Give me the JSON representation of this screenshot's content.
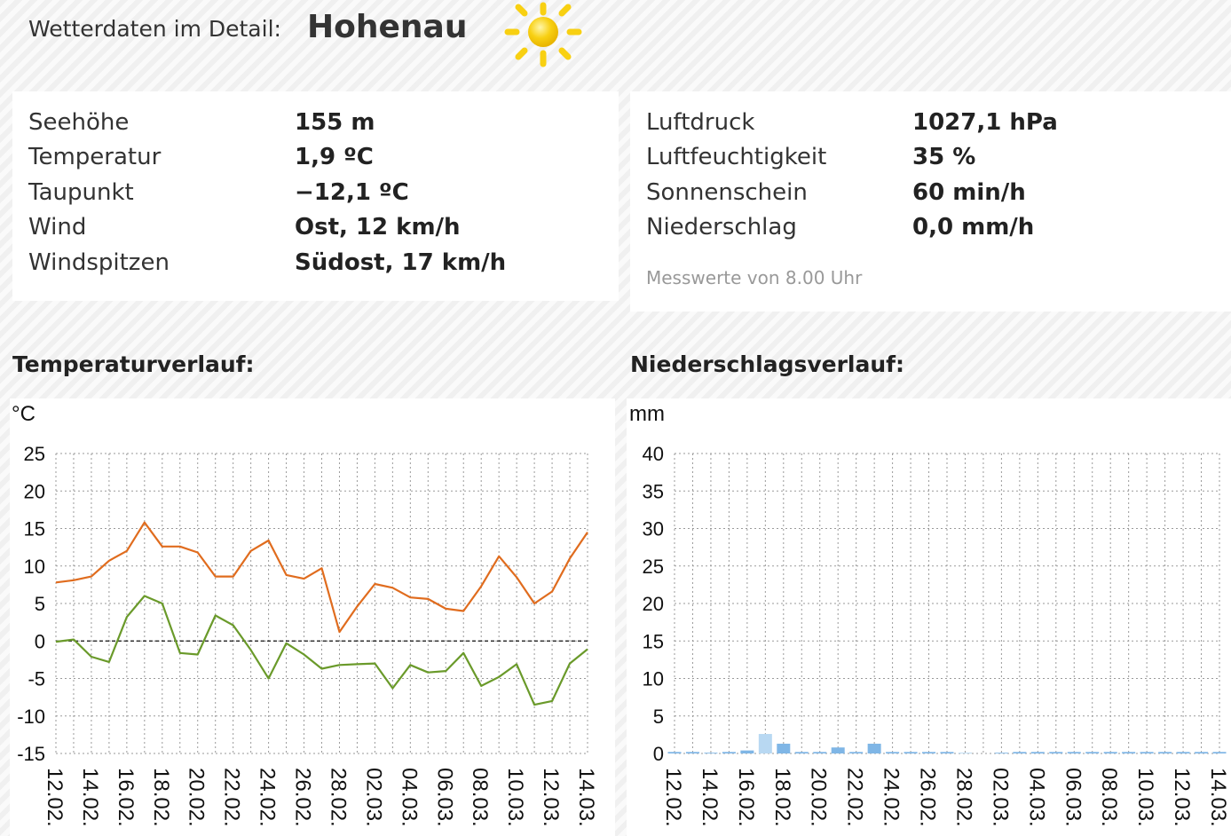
{
  "header": {
    "prefix": "Wetterdaten im Detail:",
    "location": "Hohenau",
    "weather_icon": "sun-icon",
    "sun_color": "#f8d012"
  },
  "left_panel": {
    "rows": [
      {
        "label": "Seehöhe",
        "value": "155 m"
      },
      {
        "label": "Temperatur",
        "value": "1,9 ºC"
      },
      {
        "label": "Taupunkt",
        "value": "−12,1 ºC"
      },
      {
        "label": "Wind",
        "value": "Ost, 12 km/h"
      },
      {
        "label": "Windspitzen",
        "value": "Südost, 17 km/h"
      }
    ]
  },
  "right_panel": {
    "rows": [
      {
        "label": "Luftdruck",
        "value": "1027,1 hPa"
      },
      {
        "label": "Luftfeuchtigkeit",
        "value": "35 %"
      },
      {
        "label": "Sonnenschein",
        "value": "60 min/h"
      },
      {
        "label": "Niederschlag",
        "value": "0,0 mm/h"
      }
    ],
    "note": "Messwerte von 8.00 Uhr"
  },
  "temp_section": {
    "title": "Temperaturverlauf:"
  },
  "rain_section": {
    "title": "Niederschlagsverlauf:"
  },
  "chart_data": [
    {
      "type": "line",
      "title": "Temperaturverlauf:",
      "ylabel": "°C",
      "ylim": [
        -15,
        25
      ],
      "yticks": [
        25,
        20,
        15,
        10,
        5,
        0,
        -5,
        -10,
        -15
      ],
      "x": [
        "12.02.",
        "13.02.",
        "14.02.",
        "15.02.",
        "16.02.",
        "17.02.",
        "18.02.",
        "19.02.",
        "20.02.",
        "21.02.",
        "22.02.",
        "23.02.",
        "24.02.",
        "25.02.",
        "26.02.",
        "27.02.",
        "28.02.",
        "01.03.",
        "02.03.",
        "03.03.",
        "04.03.",
        "05.03.",
        "06.03.",
        "07.03.",
        "08.03.",
        "09.03.",
        "10.03.",
        "11.03.",
        "12.03.",
        "13.03.",
        "14.03."
      ],
      "xticks": [
        "12.02.",
        "14.02.",
        "16.02.",
        "18.02.",
        "20.02.",
        "22.02.",
        "24.02.",
        "26.02.",
        "28.02.",
        "02.03.",
        "04.03.",
        "06.03.",
        "08.03.",
        "10.03.",
        "12.03.",
        "14.03."
      ],
      "grid": true,
      "zero_line": true,
      "series": [
        {
          "color": "#e06c1e",
          "values": [
            7.8,
            8.1,
            8.6,
            10.7,
            12.0,
            15.8,
            12.6,
            12.6,
            11.8,
            8.6,
            8.6,
            12.0,
            13.4,
            8.8,
            8.3,
            9.7,
            1.2,
            4.6,
            7.6,
            7.1,
            5.8,
            5.6,
            4.3,
            4.0,
            7.3,
            11.3,
            8.5,
            5.0,
            6.6,
            11.0,
            14.5
          ]
        },
        {
          "color": "#6a9a2a",
          "values": [
            -0.1,
            0.2,
            -2.1,
            -2.8,
            3.2,
            6.0,
            5.0,
            -1.6,
            -1.8,
            3.4,
            2.1,
            -1.2,
            -5.0,
            -0.3,
            -1.8,
            -3.7,
            -3.2,
            -3.1,
            -3.0,
            -6.3,
            -3.2,
            -4.2,
            -4.0,
            -1.6,
            -6.0,
            -4.8,
            -3.1,
            -8.5,
            -8.0,
            -3.0,
            -1.1
          ]
        }
      ]
    },
    {
      "type": "bar",
      "title": "Niederschlagsverlauf:",
      "ylabel": "mm",
      "ylim": [
        0,
        40
      ],
      "yticks": [
        40,
        35,
        30,
        25,
        20,
        15,
        10,
        5,
        0
      ],
      "categories": [
        "12.02.",
        "13.02.",
        "14.02.",
        "15.02.",
        "16.02.",
        "17.02.",
        "18.02.",
        "19.02.",
        "20.02.",
        "21.02.",
        "22.02.",
        "23.02.",
        "24.02.",
        "25.02.",
        "26.02.",
        "27.02.",
        "28.02.",
        "01.03.",
        "02.03.",
        "03.03.",
        "04.03.",
        "05.03.",
        "06.03.",
        "07.03.",
        "08.03.",
        "09.03.",
        "10.03.",
        "11.03.",
        "12.03.",
        "13.03.",
        "14.03."
      ],
      "xticks": [
        "12.02.",
        "14.02.",
        "16.02.",
        "18.02.",
        "20.02.",
        "22.02.",
        "24.02.",
        "26.02.",
        "28.02.",
        "02.03.",
        "04.03.",
        "06.03.",
        "08.03.",
        "10.03.",
        "12.03.",
        "14.03."
      ],
      "values": [
        0.2,
        0.2,
        0.1,
        0.2,
        0.4,
        2.6,
        1.3,
        0.2,
        0.2,
        0.8,
        0.2,
        1.3,
        0.2,
        0.2,
        0.2,
        0.2,
        0.1,
        0.0,
        0.1,
        0.2,
        0.2,
        0.2,
        0.2,
        0.2,
        0.2,
        0.2,
        0.2,
        0.2,
        0.2,
        0.2,
        0.2
      ],
      "bar_colors": {
        "default": "#7fb6e6",
        "highlight": "#b8d8f2"
      },
      "highlight_indices": [
        5,
        16
      ],
      "grid": true
    }
  ]
}
